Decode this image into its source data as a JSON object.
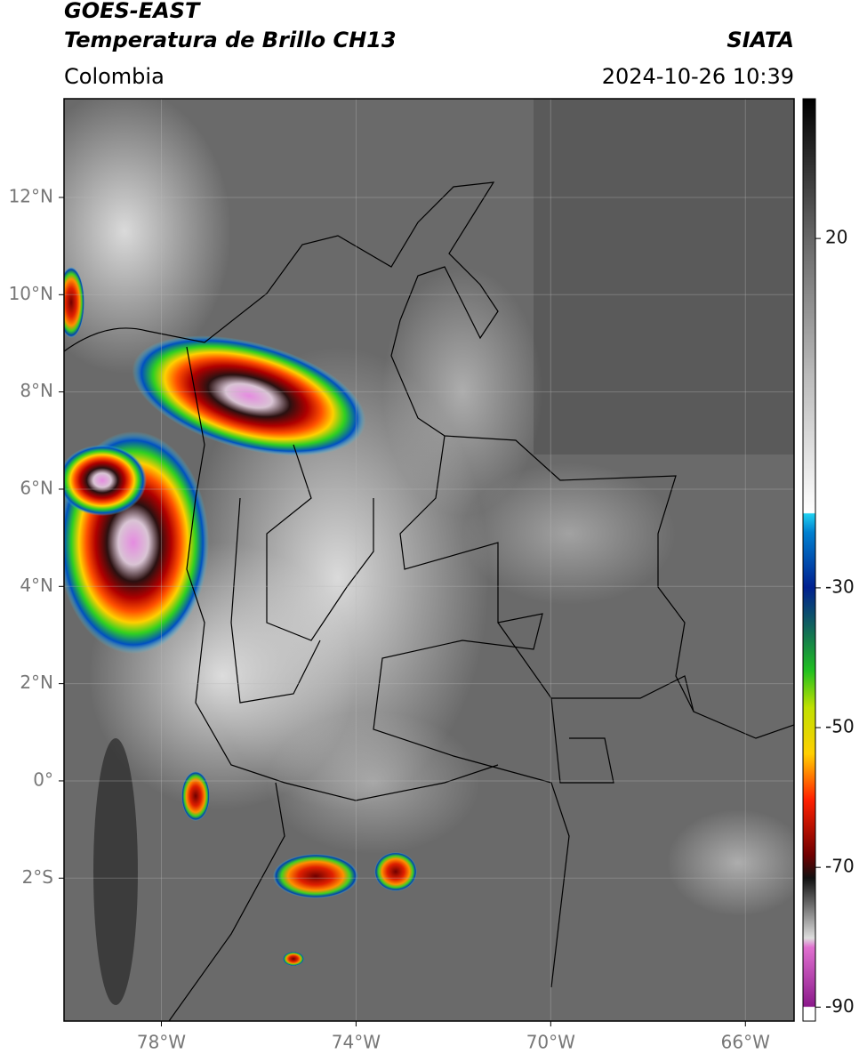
{
  "header": {
    "title": "GOES-EAST",
    "subtitle": "Temperatura de Brillo CH13",
    "region": "Colombia",
    "source": "SIATA",
    "datetime": "2024-10-26 10:39"
  },
  "map": {
    "xlim": [
      -80,
      -65
    ],
    "ylim": [
      -4.94,
      14.03
    ],
    "xticks": [
      {
        "value": -78,
        "label": "78°W"
      },
      {
        "value": -74,
        "label": "74°W"
      },
      {
        "value": -70,
        "label": "70°W"
      },
      {
        "value": -66,
        "label": "66°W"
      }
    ],
    "yticks": [
      {
        "value": 12,
        "label": "12°N"
      },
      {
        "value": 10,
        "label": "10°N"
      },
      {
        "value": 8,
        "label": "8°N"
      },
      {
        "value": 6,
        "label": "6°N"
      },
      {
        "value": 4,
        "label": "4°N"
      },
      {
        "value": 2,
        "label": "2°N"
      },
      {
        "value": 0,
        "label": "0°"
      },
      {
        "value": -2,
        "label": "2°S"
      }
    ]
  },
  "colorbar": {
    "lim": [
      -92,
      40
    ],
    "ticks": [
      20,
      -30,
      -50,
      -70,
      -90
    ]
  }
}
